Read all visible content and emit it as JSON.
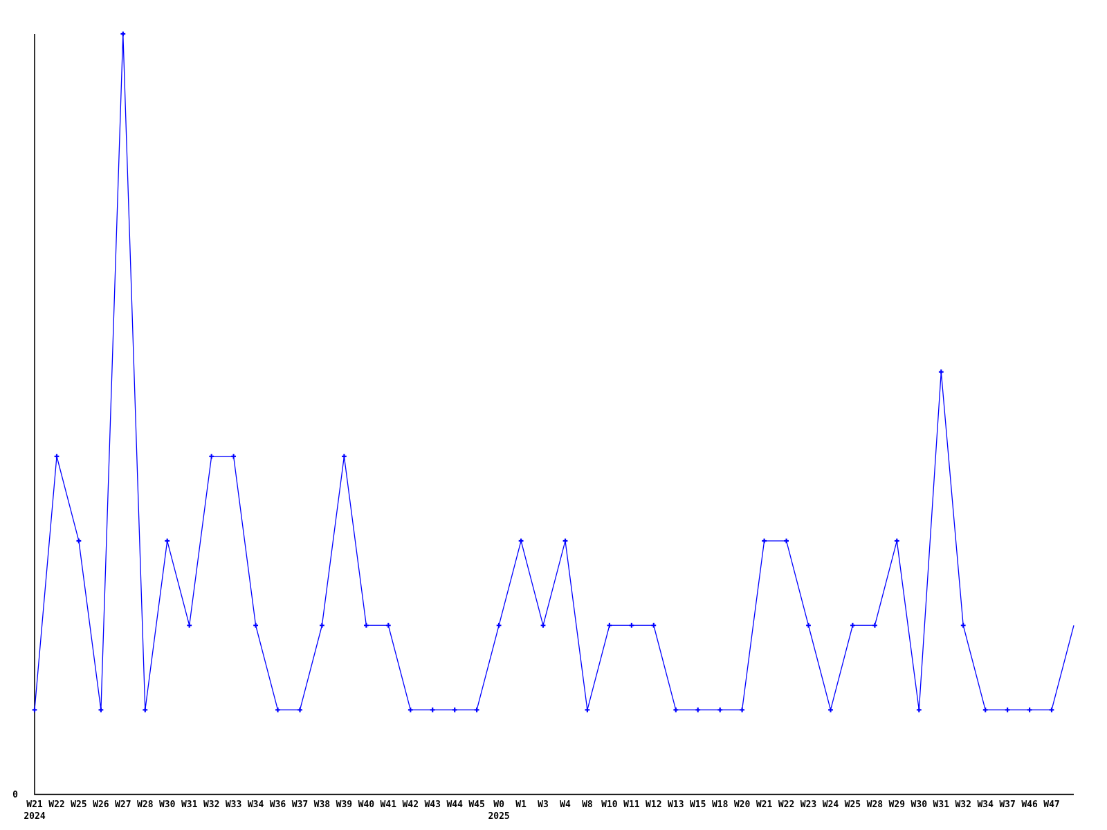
{
  "chart_data": {
    "type": "line",
    "title": "",
    "xlabel": "",
    "ylabel": "",
    "grid": false,
    "legend": "none",
    "marker": "plus",
    "series_color": "#0000ff",
    "axis_color": "#000000",
    "background_color": "#ffffff",
    "y_axis": {
      "origin_label": "0",
      "min": 0,
      "max": 9,
      "only_labeled_tick": "0"
    },
    "x_tick_labels": [
      "W21",
      "W22",
      "W25",
      "W26",
      "W27",
      "W28",
      "W30",
      "W31",
      "W32",
      "W33",
      "W34",
      "W36",
      "W37",
      "W38",
      "W39",
      "W40",
      "W41",
      "W42",
      "W43",
      "W44",
      "W45",
      "W0",
      "W1",
      "W3",
      "W4",
      "W8",
      "W10",
      "W11",
      "W12",
      "W13",
      "W15",
      "W18",
      "W20",
      "W21",
      "W22",
      "W23",
      "W24",
      "W25",
      "W28",
      "W29",
      "W30",
      "W31",
      "W32",
      "W34",
      "W37",
      "W46",
      "W47"
    ],
    "values": [
      1,
      4,
      3,
      1,
      9,
      1,
      3,
      2,
      4,
      4,
      2,
      1,
      1,
      2,
      4,
      2,
      2,
      1,
      1,
      1,
      1,
      2,
      3,
      2,
      3,
      1,
      2,
      2,
      2,
      1,
      1,
      1,
      1,
      3,
      3,
      2,
      1,
      2,
      2,
      3,
      1,
      5,
      2,
      1,
      1,
      1,
      1
    ],
    "year_labels": [
      {
        "index": 0,
        "label": "2024"
      },
      {
        "index": 21,
        "label": "2025"
      }
    ],
    "clipped_end_segment": {
      "value": 2,
      "has_marker": false,
      "note": "line continues past last labeled point and is clipped at right plot edge"
    }
  }
}
